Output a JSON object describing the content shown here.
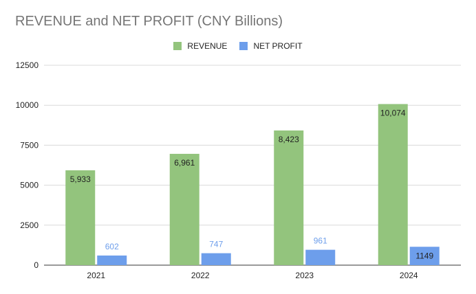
{
  "chart_data": {
    "type": "bar",
    "title": "REVENUE and NET PROFIT (CNY Billions)",
    "categories": [
      "2021",
      "2022",
      "2023",
      "2024"
    ],
    "series": [
      {
        "name": "REVENUE",
        "color": "#93c47d",
        "values": [
          5933,
          6961,
          8423,
          10074
        ],
        "labels": [
          "5,933",
          "6,961",
          "8,423",
          "10,074"
        ]
      },
      {
        "name": "NET PROFIT",
        "color": "#6d9eeb",
        "values": [
          602,
          747,
          961,
          1149
        ],
        "labels": [
          "602",
          "747",
          "961",
          "1149"
        ]
      }
    ],
    "ylim": [
      0,
      12500
    ],
    "yticks": [
      "0",
      "2500",
      "5000",
      "7500",
      "10000",
      "12500"
    ],
    "grid": true,
    "legend_position": "top-center",
    "xlabel": "",
    "ylabel": ""
  }
}
